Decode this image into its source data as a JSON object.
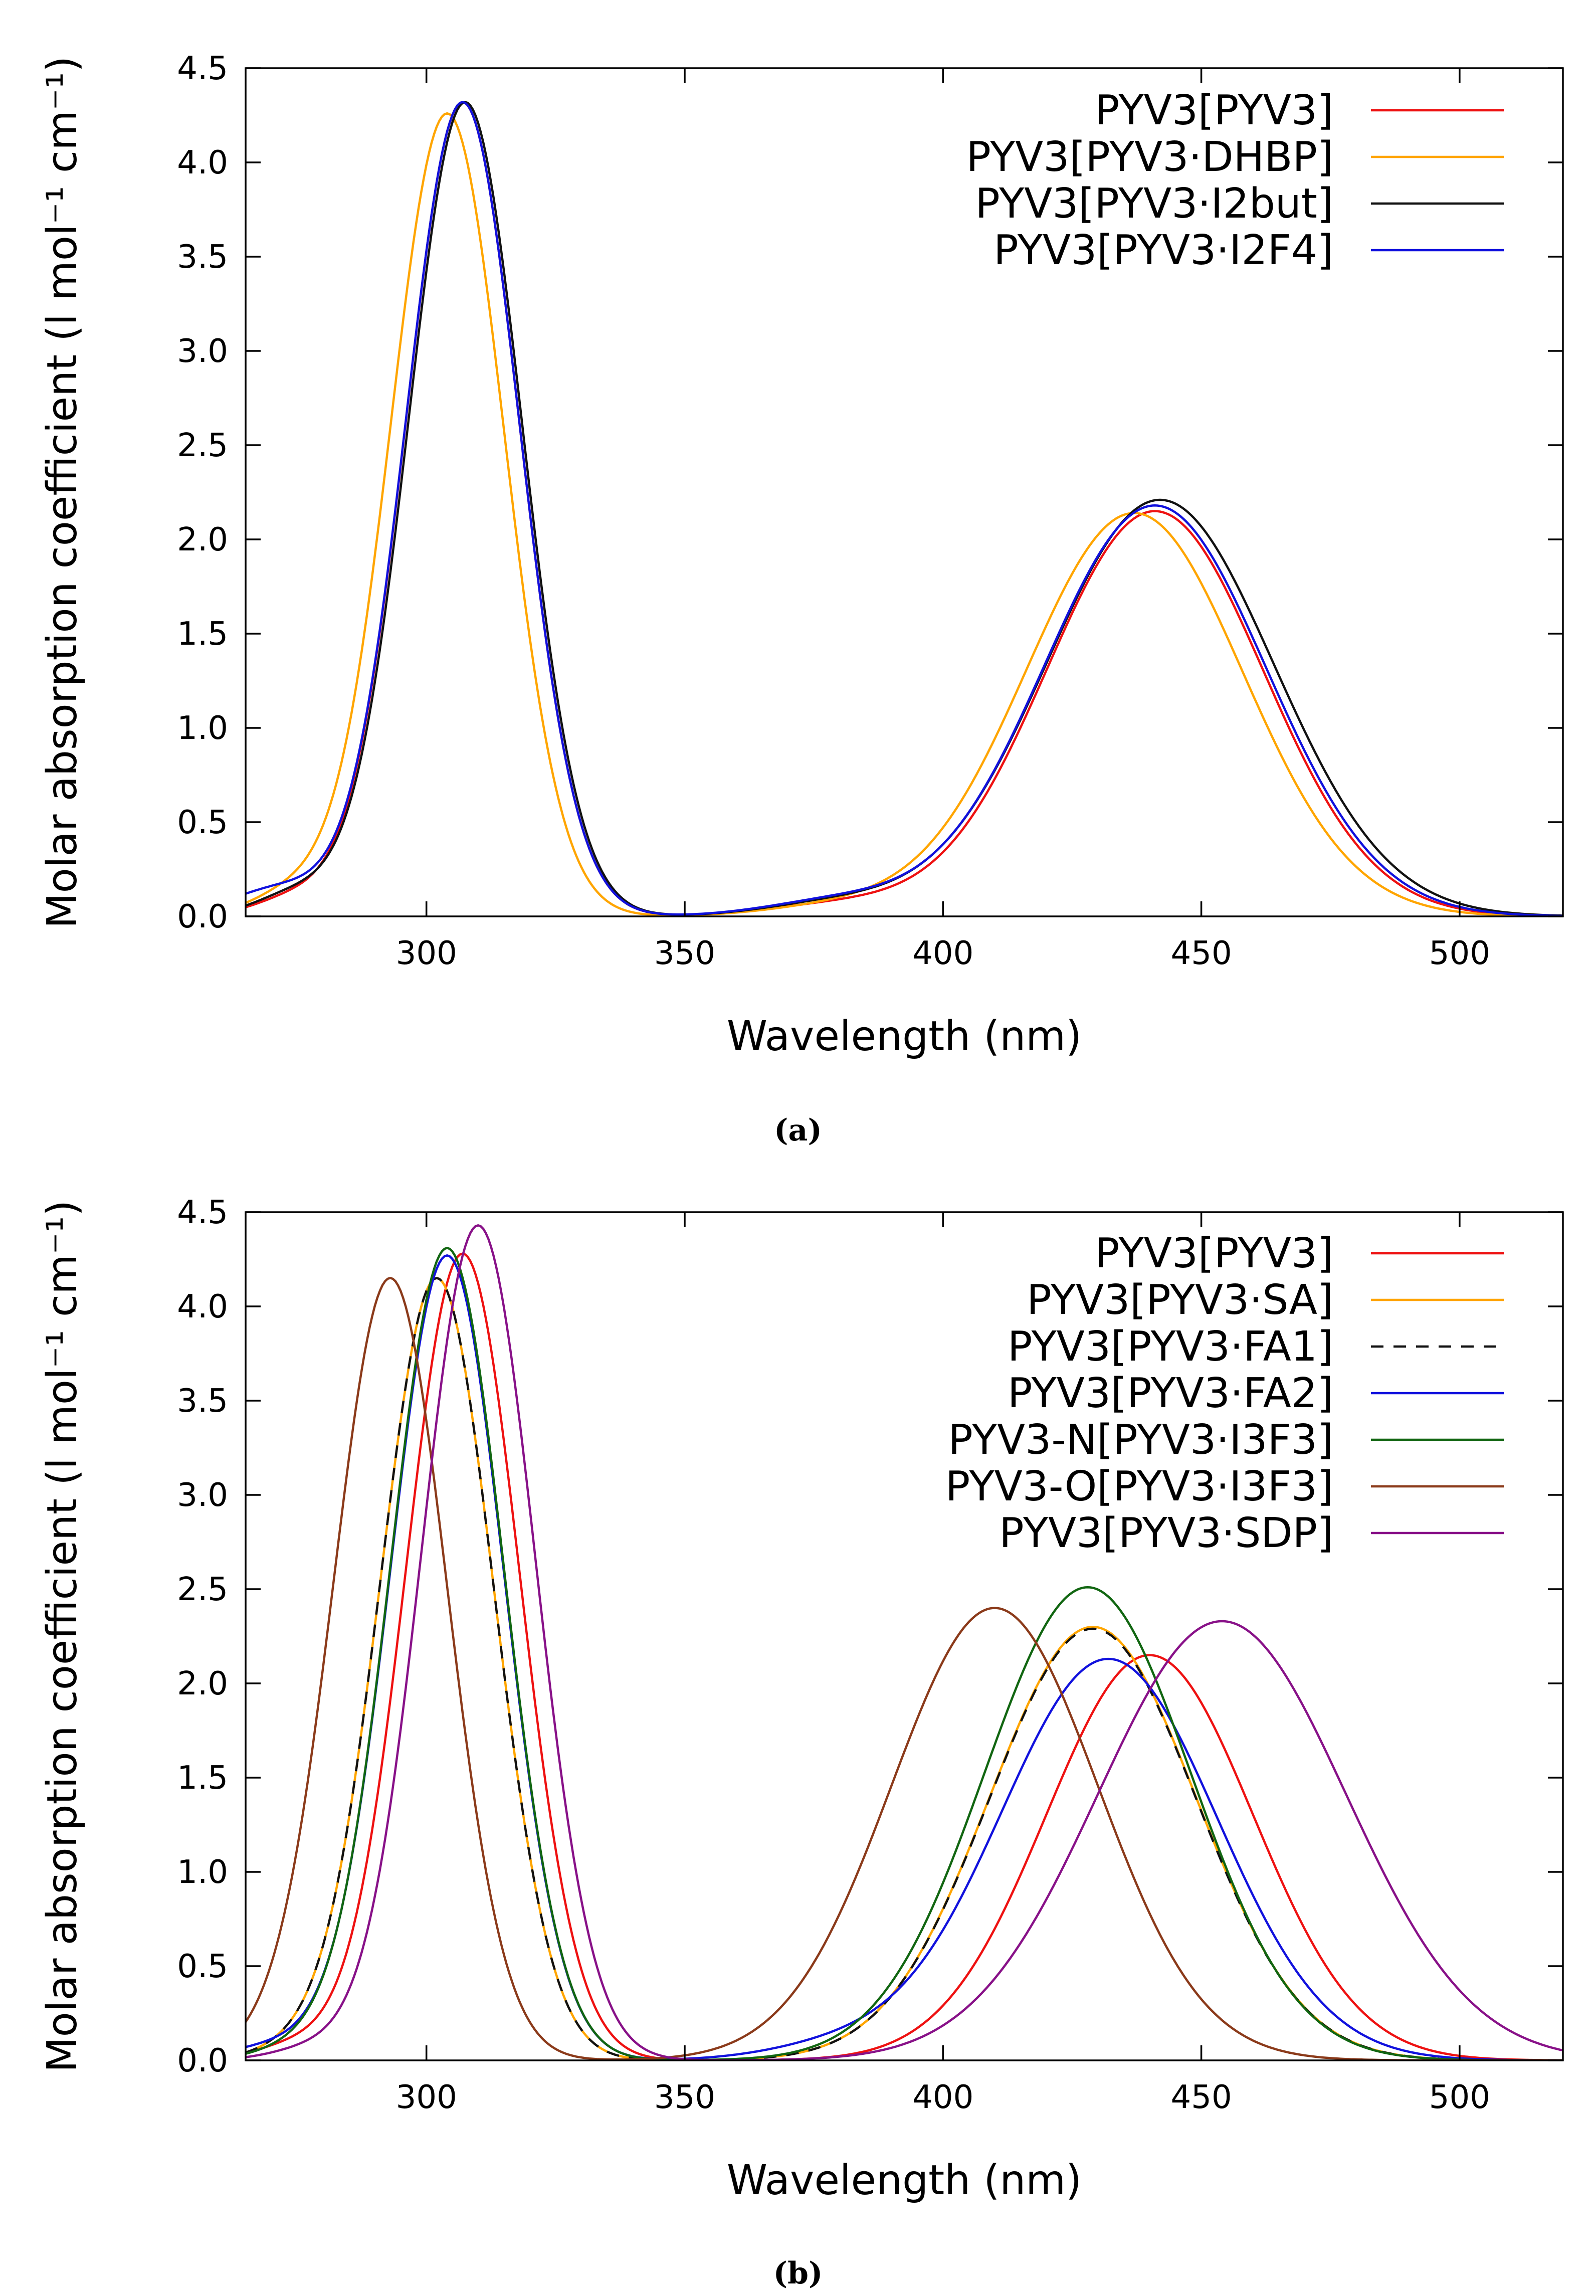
{
  "chart_data": [
    {
      "type": "line",
      "panel": "a",
      "caption": "(a)",
      "xlabel": "Wavelength (nm)",
      "ylabel": "Molar absorption coefficient (l mol⁻¹ cm⁻¹)",
      "xlim": [
        265,
        520
      ],
      "ylim": [
        0,
        4.5
      ],
      "xticks": [
        300,
        350,
        400,
        450,
        500
      ],
      "xtick_labels": [
        "300",
        "350",
        "400",
        "450",
        "500"
      ],
      "yticks": [
        0,
        0.5,
        1.0,
        1.5,
        2.0,
        2.5,
        3.0,
        3.5,
        4.0,
        4.5
      ],
      "ytick_labels": [
        "0.0",
        "0.5",
        "1.0",
        "1.5",
        "2.0",
        "2.5",
        "3.0",
        "3.5",
        "4.0",
        "4.5"
      ],
      "legend_position": "top-right",
      "series": [
        {
          "name": "PYV3[PYV3]",
          "color": "#ee1111",
          "dash": "",
          "bands": [
            [
              307,
              11,
              4.32
            ],
            [
              441,
              21,
              2.15
            ],
            [
              380,
              14,
              0.06
            ],
            [
              275,
              8,
              0.1
            ]
          ]
        },
        {
          "name": "PYV3[PYV3·DHBP]",
          "color": "#ffa500",
          "dash": "",
          "bands": [
            [
              304,
              11,
              4.26
            ],
            [
              437,
              21,
              2.14
            ],
            [
              380,
              14,
              0.05
            ],
            [
              274,
              8,
              0.12
            ]
          ]
        },
        {
          "name": "PYV3[PYV3·I2but]",
          "color": "#111111",
          "dash": "",
          "bands": [
            [
              307.5,
              11,
              4.32
            ],
            [
              442,
              22,
              2.21
            ],
            [
              380,
              14,
              0.07
            ],
            [
              275,
              8,
              0.12
            ]
          ]
        },
        {
          "name": "PYV3[PYV3·I2F4]",
          "color": "#1111dd",
          "dash": "",
          "bands": [
            [
              307,
              11,
              4.32
            ],
            [
              441,
              21.5,
              2.18
            ],
            [
              380,
              14,
              0.08
            ],
            [
              272,
              10,
              0.15
            ]
          ]
        }
      ]
    },
    {
      "type": "line",
      "panel": "b",
      "caption": "(b)",
      "xlabel": "Wavelength (nm)",
      "ylabel": "Molar absorption coefficient (l mol⁻¹ cm⁻¹)",
      "xlim": [
        265,
        520
      ],
      "ylim": [
        0,
        4.5
      ],
      "xticks": [
        300,
        350,
        400,
        450,
        500
      ],
      "xtick_labels": [
        "300",
        "350",
        "400",
        "450",
        "500"
      ],
      "yticks": [
        0,
        0.5,
        1.0,
        1.5,
        2.0,
        2.5,
        3.0,
        3.5,
        4.0,
        4.5
      ],
      "ytick_labels": [
        "0.0",
        "0.5",
        "1.0",
        "1.5",
        "2.0",
        "2.5",
        "3.0",
        "3.5",
        "4.0",
        "4.5"
      ],
      "legend_position": "top-right",
      "series": [
        {
          "name": "PYV3[PYV3]",
          "color": "#ee1111",
          "dash": "",
          "bands": [
            [
              307,
              11,
              4.28
            ],
            [
              440,
              20,
              2.15
            ],
            [
              275,
              8,
              0.08
            ]
          ]
        },
        {
          "name": "PYV3[PYV3·SA]",
          "color": "#ffa500",
          "dash": "",
          "bands": [
            [
              302,
              11,
              4.15
            ],
            [
              429,
              20,
              2.3
            ],
            [
              275,
              8,
              0.06
            ]
          ]
        },
        {
          "name": "PYV3[PYV3·FA1]",
          "color": "#111111",
          "dash": "10,8",
          "bands": [
            [
              302,
              11,
              4.15
            ],
            [
              429,
              20,
              2.29
            ],
            [
              275,
              8,
              0.06
            ]
          ]
        },
        {
          "name": "PYV3[PYV3·FA2]",
          "color": "#1111dd",
          "dash": "",
          "bands": [
            [
              304,
              11,
              4.27
            ],
            [
              432,
              21,
              2.13
            ],
            [
              380,
              14,
              0.07
            ],
            [
              272,
              10,
              0.08
            ]
          ]
        },
        {
          "name": "PYV3-N[PYV3·I3F3]",
          "color": "#116611",
          "dash": "",
          "bands": [
            [
              304,
              11,
              4.31
            ],
            [
              428,
              20,
              2.51
            ],
            [
              275,
              8,
              0.06
            ]
          ]
        },
        {
          "name": "PYV3-O[PYV3·I3F3]",
          "color": "#8b3a1a",
          "dash": "",
          "bands": [
            [
              293,
              11,
              4.15
            ],
            [
              410,
              20,
              2.4
            ],
            [
              270,
              8,
              0.05
            ]
          ]
        },
        {
          "name": "PYV3[PYV3·SDP]",
          "color": "#881188",
          "dash": "",
          "bands": [
            [
              310,
              11,
              4.43
            ],
            [
              454,
              24,
              2.33
            ],
            [
              278,
              8,
              0.06
            ]
          ]
        }
      ]
    }
  ]
}
